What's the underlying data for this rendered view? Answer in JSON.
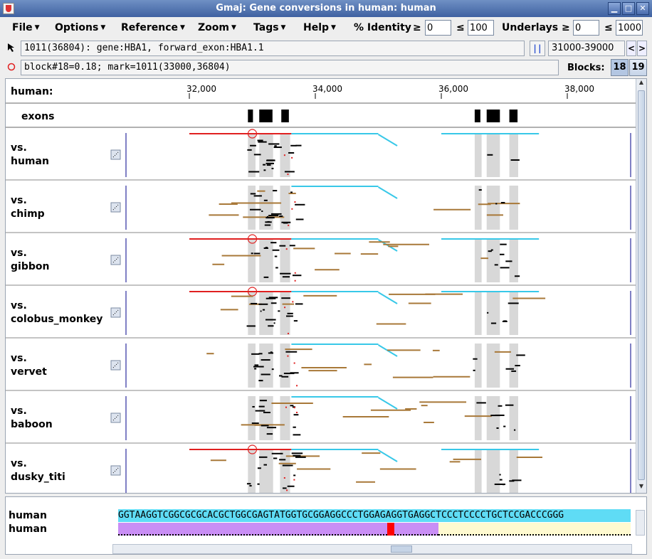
{
  "window": {
    "title": "Gmaj: Gene conversions in human: human"
  },
  "menubar": {
    "menus": [
      {
        "label": "File"
      },
      {
        "label": "Options"
      },
      {
        "label": "Reference"
      },
      {
        "label": "Zoom"
      },
      {
        "label": "Tags"
      },
      {
        "label": "Help"
      }
    ],
    "identity_label": "% Identity",
    "ge_symbol": "≥",
    "le_symbol": "≤",
    "identity_min": "0",
    "identity_max": "100",
    "underlays_label": "Underlays",
    "underlays_min": "0",
    "underlays_max": "1000"
  },
  "status": {
    "position_text": "1011(36804): gene:HBA1, forward_exon:HBA1.1",
    "range_text": "31000-39000",
    "mark_text": "block#18=0.18; mark=1011(33000,36804)",
    "blocks_label": "Blocks:",
    "block_a": "18",
    "block_b": "19"
  },
  "ruler": {
    "reference_label": "human:",
    "ticks": [
      "32,000",
      "34,000",
      "36,000",
      "38,000"
    ]
  },
  "exons_label": "exons",
  "panels": [
    {
      "line1": "vs.",
      "line2": "human"
    },
    {
      "line1": "vs.",
      "line2": "chimp"
    },
    {
      "line1": "vs.",
      "line2": "gibbon"
    },
    {
      "line1": "vs.",
      "line2": "colobus_monkey"
    },
    {
      "line1": "vs.",
      "line2": "vervet"
    },
    {
      "line1": "vs.",
      "line2": "baboon"
    },
    {
      "line1": "vs.",
      "line2": "dusky_titi"
    }
  ],
  "sequence": {
    "row1_name": "human",
    "row2_name": "human",
    "row1_seq": "GGTAAGGTCGGCGCGCACGCTGGCGAGTATGGTGCGGAGGCCCTGGAGAGGTGAGGCTCCCTCCCCTGCTCCGACCCGGG"
  },
  "colors": {
    "red": "#e02020",
    "cyan": "#38c8e8",
    "brown": "#a87838",
    "black": "#000000",
    "underlay": "#d8d8d8",
    "seq_cyan": "#5fdcf5",
    "seq_purple": "#c98ef5",
    "seq_yellow": "#fffad0",
    "seq_red": "#ff0000"
  }
}
